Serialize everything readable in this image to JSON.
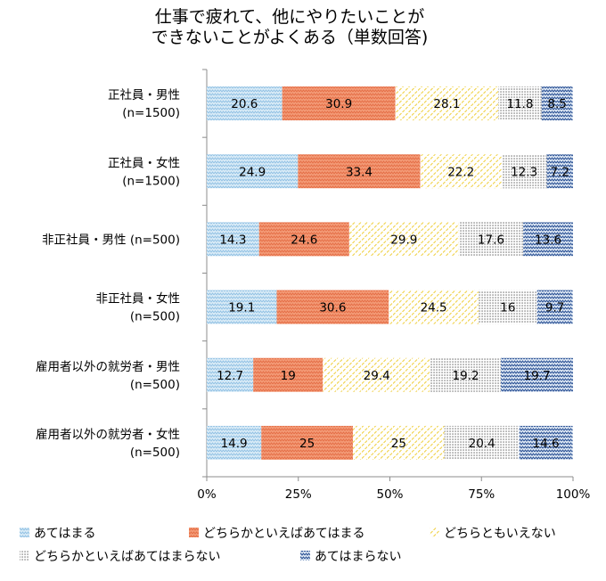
{
  "chart_data": {
    "type": "bar",
    "orientation": "horizontal",
    "stacked": "percent",
    "title_lines": [
      "仕事で疲れて、他にやりたいことが",
      "できないことがよくある（単数回答)"
    ],
    "categories": [
      [
        "正社員・男性",
        "(n=1500)"
      ],
      [
        "正社員・女性",
        "(n=1500)"
      ],
      [
        "非正社員・男性  (n=500)"
      ],
      [
        "非正社員・女性",
        "(n=500)"
      ],
      [
        "雇用者以外の就労者・男性",
        "(n=500)"
      ],
      [
        "雇用者以外の就労者・女性",
        "(n=500)"
      ]
    ],
    "series": [
      {
        "name": "あてはまる",
        "color": "#bfdcef",
        "pattern": "zigzag-light-blue",
        "values": [
          20.6,
          24.9,
          14.3,
          19.1,
          12.7,
          14.9
        ],
        "labels": [
          "20.6",
          "24.9",
          "14.3",
          "19.1",
          "12.7",
          "14.9"
        ]
      },
      {
        "name": "どちらかといえばあてはまる",
        "color": "#f08e69",
        "pattern": "zigzag-orange",
        "values": [
          30.9,
          33.4,
          24.6,
          30.6,
          19,
          25
        ],
        "labels": [
          "30.9",
          "33.4",
          "24.6",
          "30.6",
          "19",
          "25"
        ]
      },
      {
        "name": "どちらともいえない",
        "color": "#f2d64a",
        "pattern": "dashed-yellow",
        "values": [
          28.1,
          22.2,
          29.9,
          24.5,
          29.4,
          25
        ],
        "labels": [
          "28.1",
          "22.2",
          "29.9",
          "24.5",
          "29.4",
          "25"
        ]
      },
      {
        "name": "どちらかといえばあてはまらない",
        "color": "#555555",
        "pattern": "dotted-gray",
        "values": [
          11.8,
          12.3,
          17.6,
          16,
          19.2,
          20.4
        ],
        "labels": [
          "11.8",
          "12.3",
          "17.6",
          "16",
          "19.2",
          "20.4"
        ]
      },
      {
        "name": "あてはまらない",
        "color": "#3a5f9e",
        "pattern": "zigzag-dark-blue",
        "values": [
          8.5,
          7.2,
          13.6,
          9.7,
          19.7,
          14.6
        ],
        "labels": [
          "8.5",
          "7.2",
          "13.6",
          "9.7",
          "19.7",
          "14.6"
        ]
      }
    ],
    "x_ticks": [
      "0%",
      "25%",
      "50%",
      "75%",
      "100%"
    ],
    "xlim": [
      0,
      100
    ],
    "grid": false,
    "legend_position": "bottom"
  }
}
